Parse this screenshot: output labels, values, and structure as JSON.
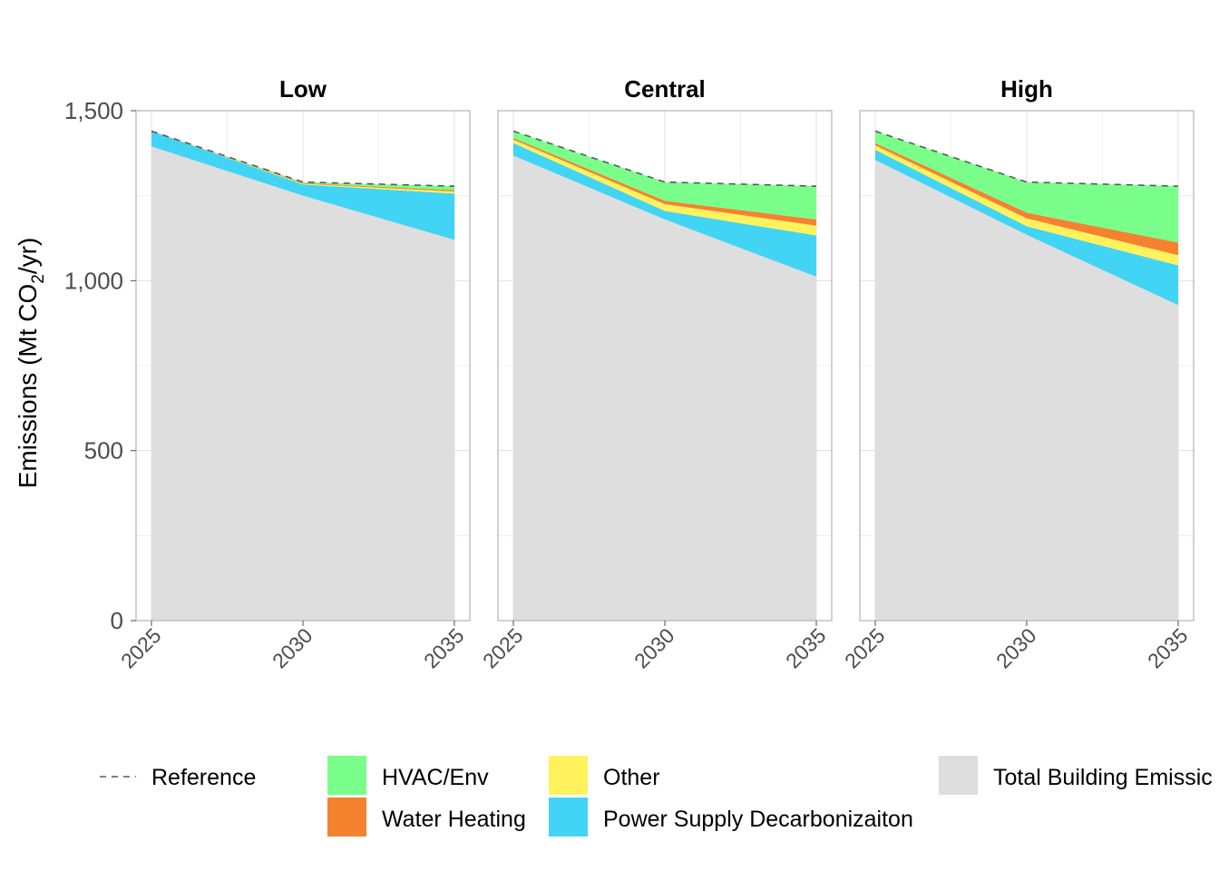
{
  "chart_data": {
    "type": "area",
    "ylabel": "Emissions (Mt CO2/yr)",
    "ylabel_main": "Emissions (Mt CO",
    "ylabel_sub": "2",
    "ylabel_tail": "/yr)",
    "ylim": [
      0,
      1500
    ],
    "yticks": [
      0,
      500,
      1000,
      1500
    ],
    "ytick_labels": [
      "0",
      "500",
      "1,000",
      "1,500"
    ],
    "x": [
      2025,
      2030,
      2035
    ],
    "xticks": [
      "2025",
      "2030",
      "2035"
    ],
    "grid": true,
    "legend_position": "bottom",
    "colors": {
      "total": "#dedede",
      "power": "#42d4f4",
      "other": "#fff25c",
      "water": "#f5822f",
      "hvac": "#79ff8a",
      "reference": "#595959"
    },
    "legend": {
      "reference": "Reference",
      "hvac": "HVAC/Env",
      "water": "Water Heating",
      "other": "Other",
      "power": "Power Supply Decarbonizaiton",
      "total": "Total Building Emissic"
    },
    "series_order": [
      "total",
      "power",
      "other",
      "water",
      "hvac"
    ],
    "facets": [
      {
        "name": "Low",
        "reference": [
          1440,
          1290,
          1278
        ],
        "boundaries": {
          "total": [
            1395,
            1250,
            1120
          ],
          "power": [
            1440,
            1283,
            1256
          ],
          "other": [
            1440,
            1285,
            1262
          ],
          "water": [
            1440,
            1287,
            1266
          ],
          "hvac": [
            1440,
            1290,
            1278
          ]
        }
      },
      {
        "name": "Central",
        "reference": [
          1440,
          1290,
          1278
        ],
        "boundaries": {
          "total": [
            1368,
            1180,
            1012
          ],
          "power": [
            1405,
            1205,
            1133
          ],
          "other": [
            1415,
            1225,
            1162
          ],
          "water": [
            1420,
            1235,
            1180
          ],
          "hvac": [
            1440,
            1290,
            1278
          ]
        }
      },
      {
        "name": "High",
        "reference": [
          1440,
          1290,
          1278
        ],
        "boundaries": {
          "total": [
            1355,
            1135,
            928
          ],
          "power": [
            1385,
            1160,
            1045
          ],
          "other": [
            1398,
            1183,
            1075
          ],
          "water": [
            1405,
            1200,
            1112
          ],
          "hvac": [
            1440,
            1290,
            1278
          ]
        }
      }
    ]
  }
}
